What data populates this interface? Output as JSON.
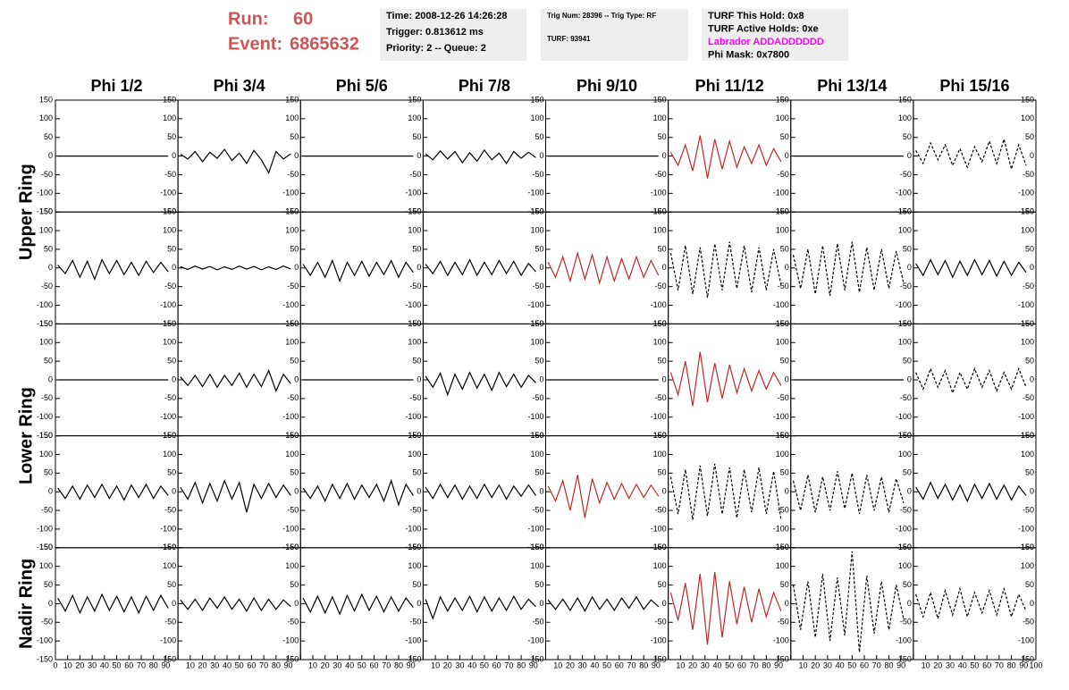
{
  "header": {
    "run_label": "Run:",
    "run": "60",
    "event_label": "Event:",
    "event": "6865632",
    "info_boxes": [
      [
        {
          "text": "Time: 2008-12-26 14:26:28"
        },
        {
          "text": "Trigger: 0.813612 ms"
        },
        {
          "text": "Priority: 2 -- Queue: 2"
        }
      ],
      [
        {
          "text": "Trig Num: 28396 -- Trig Type: RF"
        },
        {
          "text": "TURF: 93941"
        }
      ],
      [
        {
          "text": "TURF This Hold: 0x8"
        },
        {
          "text": "TURF Active Holds: 0xe"
        },
        {
          "text": "Labrador ADDADDDDDD",
          "color": "#ff00ff"
        },
        {
          "text": "Phi Mask: 0x7800"
        }
      ]
    ]
  },
  "columns": [
    "Phi 1/2",
    "Phi 3/4",
    "Phi 5/6",
    "Phi 7/8",
    "Phi 9/10",
    "Phi 11/12",
    "Phi 13/14",
    "Phi 15/16"
  ],
  "ring_labels": [
    "Upper Ring",
    "Lower Ring",
    "Nadir Ring"
  ],
  "axes": {
    "xlim": [
      0,
      100
    ],
    "xticks": [
      0,
      10,
      20,
      30,
      40,
      50,
      60,
      70,
      80,
      90,
      100
    ],
    "ylim": [
      -150,
      150
    ],
    "yticks": [
      -150,
      -100,
      -50,
      0,
      50,
      100,
      150
    ]
  },
  "x": [
    2,
    8,
    14,
    20,
    26,
    32,
    38,
    44,
    50,
    56,
    62,
    68,
    74,
    80,
    86,
    92
  ],
  "panels": [
    [
      {
        "color": "#000000",
        "style": "solid",
        "values": [
          0,
          0,
          0,
          0,
          0,
          0,
          0,
          0,
          0,
          0,
          0,
          0,
          0,
          0,
          0,
          0
        ]
      },
      {
        "color": "#000000",
        "style": "solid",
        "values": [
          5,
          -8,
          12,
          -15,
          10,
          -6,
          18,
          -12,
          8,
          -20,
          15,
          -10,
          -45,
          12,
          -8,
          6
        ]
      },
      {
        "color": "#000000",
        "style": "solid",
        "values": [
          0,
          0,
          0,
          0,
          0,
          0,
          0,
          0,
          0,
          0,
          0,
          0,
          0,
          0,
          0,
          0
        ]
      },
      {
        "color": "#000000",
        "style": "solid",
        "values": [
          6,
          -10,
          14,
          -8,
          12,
          -18,
          9,
          -14,
          16,
          -10,
          8,
          -20,
          12,
          -6,
          10,
          -4
        ]
      },
      {
        "color": "#000000",
        "style": "solid",
        "values": [
          0,
          0,
          0,
          0,
          0,
          0,
          0,
          0,
          0,
          0,
          0,
          0,
          0,
          0,
          0,
          0
        ]
      },
      {
        "color": "#bb2a2a",
        "style": "solid",
        "values": [
          10,
          -25,
          30,
          -40,
          55,
          -60,
          45,
          -35,
          40,
          -30,
          25,
          -20,
          30,
          -25,
          20,
          -15
        ]
      },
      {
        "color": "#000000",
        "style": "solid",
        "values": [
          0,
          0,
          0,
          0,
          0,
          0,
          0,
          0,
          0,
          0,
          0,
          0,
          0,
          0,
          0,
          0
        ]
      },
      {
        "color": "#000000",
        "style": "dashed",
        "values": [
          15,
          -20,
          35,
          -10,
          30,
          -25,
          20,
          -30,
          25,
          -15,
          40,
          -20,
          45,
          -35,
          30,
          -25
        ]
      }
    ],
    [
      {
        "color": "#000000",
        "style": "solid",
        "values": [
          8,
          -15,
          20,
          -25,
          18,
          -30,
          22,
          -15,
          20,
          -18,
          15,
          -20,
          18,
          -12,
          15,
          -10
        ]
      },
      {
        "color": "#000000",
        "style": "solid",
        "values": [
          3,
          -4,
          5,
          -3,
          4,
          -5,
          3,
          -4,
          5,
          -3,
          4,
          -5,
          3,
          -4,
          5,
          -3
        ]
      },
      {
        "color": "#000000",
        "style": "solid",
        "values": [
          10,
          -20,
          15,
          -25,
          20,
          -35,
          15,
          -20,
          18,
          -22,
          15,
          -18,
          20,
          -25,
          15,
          -12
        ]
      },
      {
        "color": "#000000",
        "style": "solid",
        "values": [
          10,
          -15,
          18,
          -20,
          15,
          -18,
          22,
          -20,
          15,
          -18,
          20,
          -15,
          18,
          -20,
          12,
          -10
        ]
      },
      {
        "color": "#bb2a2a",
        "style": "solid",
        "values": [
          15,
          -25,
          30,
          -35,
          40,
          -30,
          35,
          -40,
          30,
          -35,
          25,
          -30,
          30,
          -25,
          20,
          -20
        ]
      },
      {
        "color": "#000000",
        "style": "dashed",
        "values": [
          40,
          -60,
          60,
          -70,
          55,
          -80,
          65,
          -60,
          70,
          -55,
          60,
          -65,
          55,
          -60,
          50,
          -45
        ]
      },
      {
        "color": "#000000",
        "style": "dashed",
        "values": [
          35,
          -55,
          50,
          -70,
          60,
          -75,
          65,
          -60,
          70,
          -65,
          55,
          -60,
          50,
          -55,
          45,
          -40
        ]
      },
      {
        "color": "#000000",
        "style": "solid",
        "values": [
          12,
          -20,
          22,
          -18,
          20,
          -25,
          18,
          -20,
          22,
          -18,
          20,
          -22,
          18,
          -20,
          15,
          -12
        ]
      }
    ],
    [
      {
        "color": "#000000",
        "style": "solid",
        "values": [
          0,
          0,
          0,
          0,
          0,
          0,
          0,
          0,
          0,
          0,
          0,
          0,
          0,
          0,
          0,
          0
        ]
      },
      {
        "color": "#000000",
        "style": "solid",
        "values": [
          8,
          -15,
          12,
          -18,
          15,
          -20,
          12,
          -15,
          18,
          -20,
          15,
          -18,
          25,
          -30,
          15,
          -10
        ]
      },
      {
        "color": "#000000",
        "style": "solid",
        "values": [
          0,
          0,
          0,
          0,
          0,
          0,
          0,
          0,
          0,
          0,
          0,
          0,
          0,
          0,
          0,
          0
        ]
      },
      {
        "color": "#000000",
        "style": "solid",
        "values": [
          10,
          -20,
          18,
          -40,
          15,
          -25,
          20,
          -22,
          15,
          -28,
          20,
          -18,
          15,
          -20,
          12,
          -8
        ]
      },
      {
        "color": "#000000",
        "style": "solid",
        "values": [
          0,
          0,
          0,
          0,
          0,
          0,
          0,
          0,
          0,
          0,
          0,
          0,
          0,
          0,
          0,
          0
        ]
      },
      {
        "color": "#bb2a2a",
        "style": "solid",
        "values": [
          20,
          -40,
          50,
          -70,
          75,
          -60,
          45,
          -50,
          40,
          -35,
          30,
          -30,
          25,
          -25,
          20,
          -15
        ]
      },
      {
        "color": "#000000",
        "style": "solid",
        "values": [
          0,
          0,
          0,
          0,
          0,
          0,
          0,
          0,
          0,
          0,
          0,
          0,
          0,
          0,
          0,
          0
        ]
      },
      {
        "color": "#000000",
        "style": "dashed",
        "values": [
          20,
          -25,
          30,
          -20,
          25,
          -35,
          20,
          -25,
          30,
          -20,
          25,
          -30,
          20,
          -25,
          30,
          -20
        ]
      }
    ],
    [
      {
        "color": "#000000",
        "style": "solid",
        "values": [
          10,
          -18,
          15,
          -20,
          18,
          -15,
          20,
          -18,
          15,
          -22,
          18,
          -15,
          20,
          -18,
          15,
          -10
        ]
      },
      {
        "color": "#000000",
        "style": "solid",
        "values": [
          12,
          -20,
          25,
          -30,
          22,
          -25,
          30,
          -20,
          25,
          -55,
          20,
          -18,
          22,
          -15,
          18,
          -10
        ]
      },
      {
        "color": "#000000",
        "style": "solid",
        "values": [
          10,
          -18,
          15,
          -25,
          20,
          -18,
          22,
          -20,
          18,
          -15,
          20,
          -25,
          30,
          -35,
          20,
          -10
        ]
      },
      {
        "color": "#000000",
        "style": "solid",
        "values": [
          12,
          -18,
          20,
          -15,
          18,
          -20,
          15,
          -18,
          20,
          -15,
          18,
          -20,
          15,
          -12,
          18,
          -10
        ]
      },
      {
        "color": "#bb2a2a",
        "style": "solid",
        "values": [
          15,
          -25,
          30,
          -50,
          45,
          -70,
          35,
          -30,
          25,
          -20,
          22,
          -18,
          20,
          -15,
          18,
          -12
        ]
      },
      {
        "color": "#000000",
        "style": "dashed",
        "values": [
          40,
          -60,
          60,
          -75,
          70,
          -65,
          75,
          -60,
          65,
          -70,
          60,
          -55,
          65,
          -60,
          55,
          -75
        ]
      },
      {
        "color": "#000000",
        "style": "dashed",
        "values": [
          30,
          -50,
          45,
          -55,
          40,
          -50,
          55,
          -45,
          50,
          -60,
          45,
          -50,
          40,
          -55,
          35,
          -30
        ]
      },
      {
        "color": "#000000",
        "style": "solid",
        "values": [
          12,
          -20,
          25,
          -18,
          20,
          -22,
          18,
          -25,
          20,
          -18,
          22,
          -20,
          18,
          -22,
          15,
          -10
        ]
      }
    ],
    [
      {
        "color": "#000000",
        "style": "solid",
        "values": [
          15,
          -20,
          22,
          -25,
          18,
          -20,
          25,
          -18,
          20,
          -22,
          18,
          -25,
          20,
          -18,
          22,
          -12
        ]
      },
      {
        "color": "#000000",
        "style": "solid",
        "values": [
          10,
          -15,
          12,
          -18,
          15,
          -12,
          18,
          -15,
          12,
          -20,
          15,
          -18,
          12,
          -15,
          10,
          -8
        ]
      },
      {
        "color": "#000000",
        "style": "solid",
        "values": [
          15,
          -22,
          20,
          -25,
          18,
          -28,
          22,
          -20,
          25,
          -18,
          20,
          -22,
          18,
          -20,
          15,
          -10
        ]
      },
      {
        "color": "#000000",
        "style": "solid",
        "values": [
          12,
          -40,
          18,
          -20,
          15,
          -18,
          20,
          -22,
          18,
          -20,
          15,
          -18,
          20,
          -15,
          12,
          -8
        ]
      },
      {
        "color": "#000000",
        "style": "solid",
        "values": [
          10,
          -15,
          12,
          -18,
          15,
          -20,
          18,
          -15,
          12,
          -18,
          15,
          -12,
          18,
          -15,
          10,
          -8
        ]
      },
      {
        "color": "#bb2a2a",
        "style": "solid",
        "values": [
          30,
          -45,
          55,
          -70,
          80,
          -110,
          85,
          -90,
          60,
          -55,
          45,
          -50,
          40,
          -35,
          30,
          -20
        ]
      },
      {
        "color": "#000000",
        "style": "dashed",
        "values": [
          50,
          -70,
          60,
          -90,
          80,
          -100,
          70,
          -85,
          140,
          -130,
          75,
          -80,
          60,
          -70,
          50,
          -40
        ]
      },
      {
        "color": "#000000",
        "style": "dashed",
        "values": [
          25,
          -35,
          30,
          -40,
          35,
          -30,
          40,
          -35,
          30,
          -25,
          35,
          -30,
          40,
          -35,
          25,
          -20
        ]
      }
    ]
  ]
}
